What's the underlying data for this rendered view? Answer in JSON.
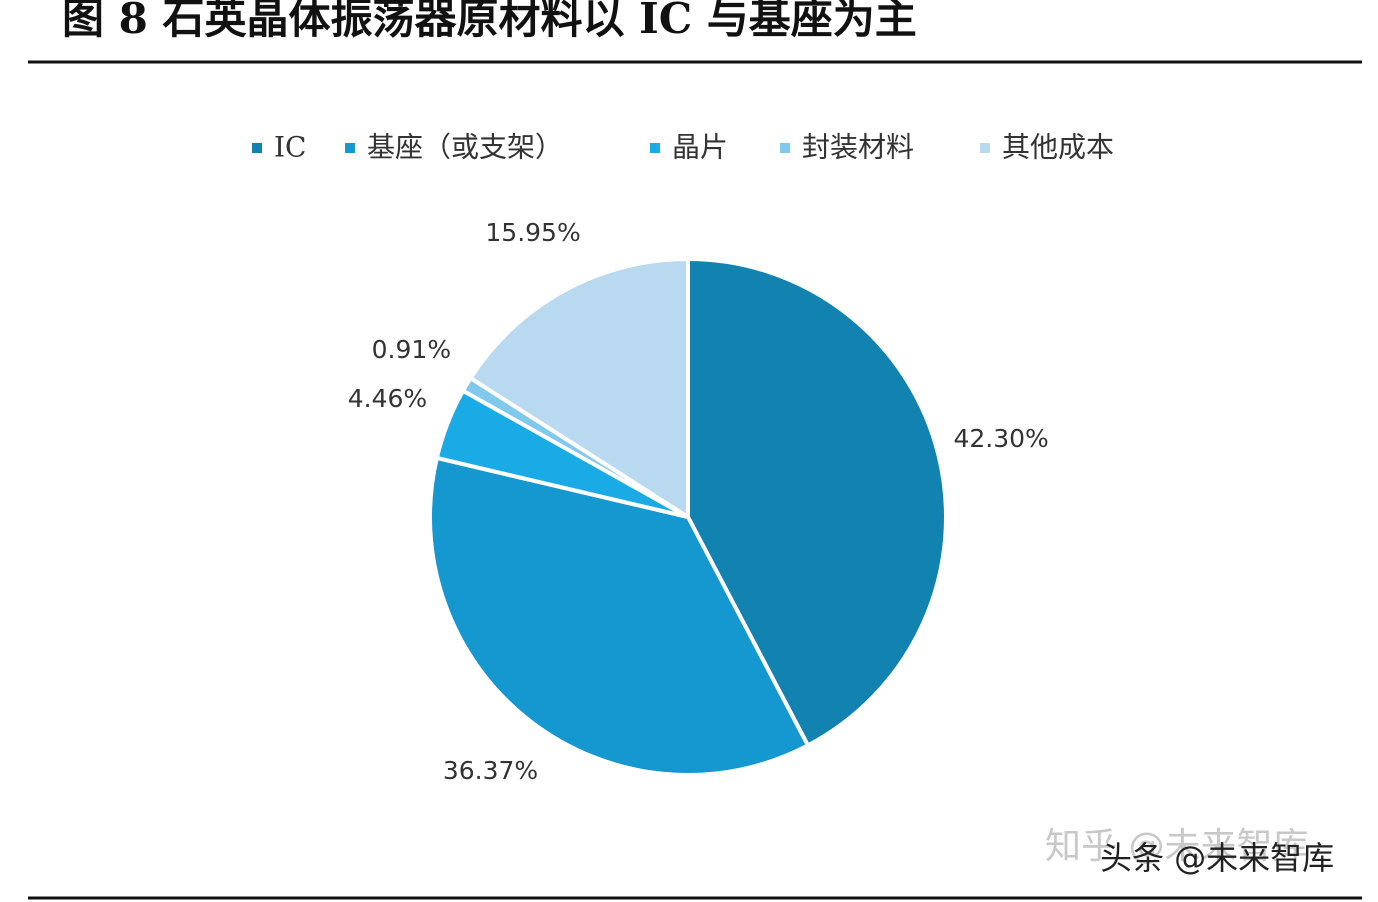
{
  "chart_data": {
    "type": "pie",
    "title": "图 8 石英晶体振荡器原材料以 IC 与基座为主",
    "categories": [
      "IC",
      "基座（或支架）",
      "晶片",
      "封装材料",
      "其他成本"
    ],
    "values": [
      42.3,
      36.37,
      4.46,
      0.91,
      15.95
    ],
    "value_labels": [
      "42.30%",
      "36.37%",
      "4.46%",
      "0.91%",
      "15.95%"
    ],
    "colors": [
      "#1282b0",
      "#1597cf",
      "#1aabe6",
      "#7fc8ee",
      "#b9d9f1"
    ],
    "legend": "top"
  },
  "watermarks": [
    "知乎 @未来智库",
    "头条 @未来智库"
  ]
}
